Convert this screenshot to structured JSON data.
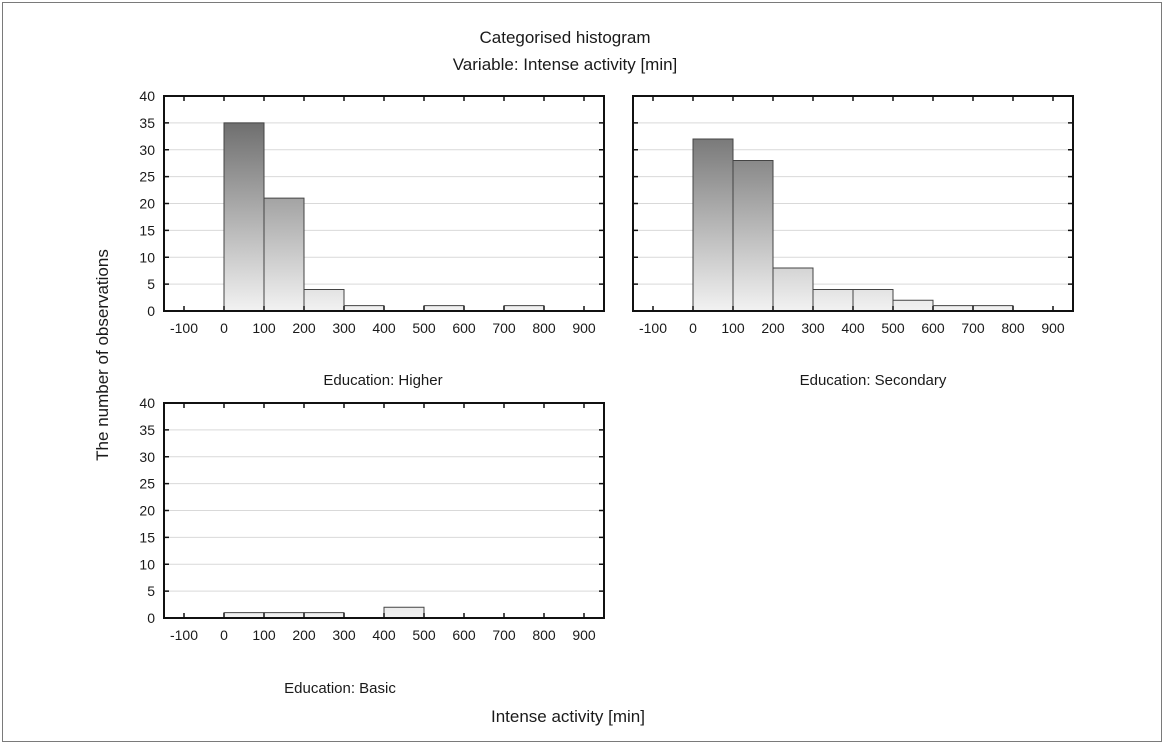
{
  "chart_data": {
    "type": "bar",
    "title": "Categorised histogram",
    "subtitle": "Variable: Intense activity [min]",
    "xlabel": "Intense activity [min]",
    "ylabel": "The number of observations",
    "xlim": [
      -150,
      950
    ],
    "ylim": [
      0,
      40
    ],
    "x_ticks": [
      -100,
      0,
      100,
      200,
      300,
      400,
      500,
      600,
      700,
      800,
      900
    ],
    "y_ticks": [
      0,
      5,
      10,
      15,
      20,
      25,
      30,
      35,
      40
    ],
    "grid": true,
    "bin_edges": [
      0,
      100,
      200,
      300,
      400,
      500,
      600,
      700,
      800
    ],
    "panels": [
      {
        "name": "Education: Higher",
        "counts": [
          35,
          21,
          4,
          1,
          0,
          1,
          0,
          1
        ]
      },
      {
        "name": "Education: Secondary",
        "counts": [
          32,
          28,
          8,
          4,
          4,
          2,
          1,
          1
        ]
      },
      {
        "name": "Education: Basic",
        "counts": [
          1,
          1,
          1,
          0,
          2,
          0,
          0,
          0
        ]
      }
    ]
  },
  "colors": {
    "bar_dark": "#6f6f6f",
    "bar_light": "#f2f2f2",
    "bar_stroke": "#444444",
    "axis": "#111111",
    "grid": "#d9d9d9"
  }
}
